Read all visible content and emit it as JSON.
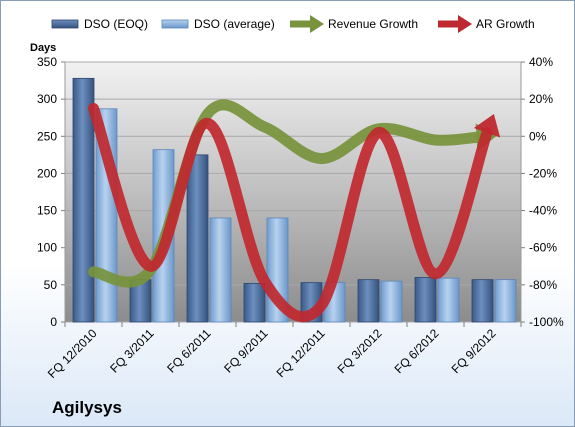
{
  "company": "Agilysys",
  "chart_data": {
    "type": "bar",
    "left_axis": {
      "label": "Days",
      "ticks": [
        0,
        50,
        100,
        150,
        200,
        250,
        300,
        350
      ],
      "range": [
        0,
        350
      ]
    },
    "right_axis": {
      "ticks": [
        "-100%",
        "-80%",
        "-60%",
        "-40%",
        "-20%",
        "0%",
        "20%",
        "40%"
      ],
      "range": [
        -100,
        40
      ]
    },
    "categories": [
      "FQ 12/2010",
      "FQ 3/2011",
      "FQ 6/2011",
      "FQ 9/2011",
      "FQ 12/2011",
      "FQ 3/2012",
      "FQ 6/2012",
      "FQ 9/2012"
    ],
    "series": [
      {
        "name": "DSO (EOQ)",
        "type": "bar",
        "axis": "left",
        "color": "#4a6b98",
        "values": [
          328,
          57,
          225,
          52,
          53,
          57,
          60,
          57
        ]
      },
      {
        "name": "DSO (average)",
        "type": "bar",
        "axis": "left",
        "color": "#8db3e2",
        "values": [
          287,
          232,
          140,
          140,
          53,
          55,
          59,
          57
        ]
      },
      {
        "name": "Revenue Growth",
        "type": "line",
        "axis": "right",
        "color": "#77933c",
        "values": [
          -73,
          -72,
          12,
          5,
          -12,
          4,
          -2,
          0
        ]
      },
      {
        "name": "AR Growth",
        "type": "line",
        "axis": "right",
        "color": "#c0282f",
        "values": [
          15,
          -70,
          7,
          -78,
          -91,
          2,
          -74,
          10
        ]
      }
    ],
    "grid": true,
    "legend": "top"
  }
}
